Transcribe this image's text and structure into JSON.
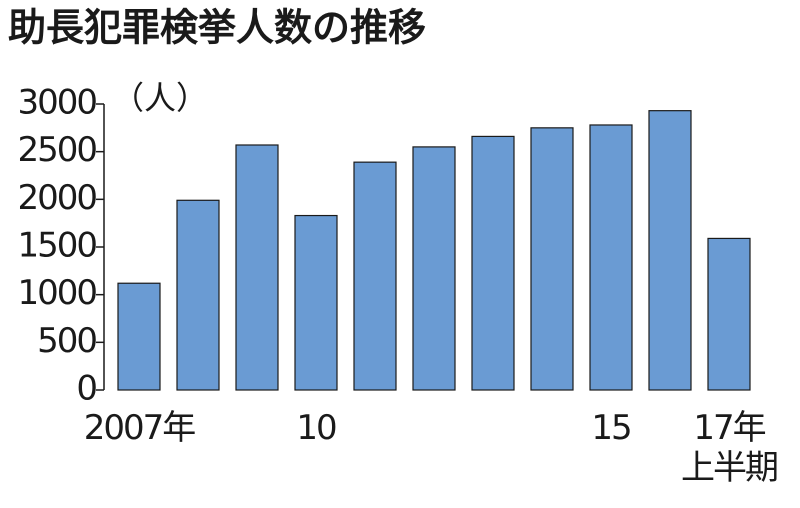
{
  "chart_data": {
    "type": "bar",
    "title": "助長犯罪検挙人数の推移",
    "y_label": "（人）",
    "categories": [
      "2007年",
      null,
      null,
      "10",
      null,
      null,
      null,
      null,
      "15",
      null,
      "17年\n上半期"
    ],
    "values": [
      1120,
      1990,
      2570,
      1830,
      2390,
      2550,
      2660,
      2750,
      2780,
      2930,
      1590
    ],
    "color": "#6a9bd3",
    "ylim": [
      0,
      3000
    ],
    "yticks": [
      0,
      500,
      1000,
      1500,
      2000,
      2500,
      3000
    ],
    "grid": false
  }
}
